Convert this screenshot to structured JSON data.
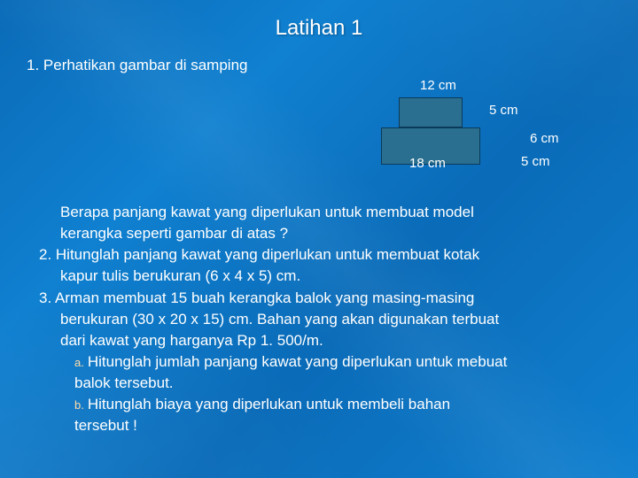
{
  "title": "Latihan 1",
  "q1": "1. Perhatikan gambar di samping",
  "diagram": {
    "label_top": "12 cm",
    "label_right_top": "5 cm",
    "label_right_mid": "6 cm",
    "label_right_bot": "5 cm",
    "label_bottom": "18 cm",
    "rect_fill": "#2a6f8f",
    "rect_border": "#0b3a5a"
  },
  "lines": {
    "q1b_l1": "Berapa panjang kawat yang diperlukan untuk membuat model",
    "q1b_l2": "kerangka seperti gambar di atas ?",
    "q2_l1": "2. Hitunglah panjang kawat yang diperlukan untuk membuat kotak",
    "q2_l2": "kapur tulis berukuran (6 x 4 x 5) cm.",
    "q3_l1": "3. Arman membuat 15 buah kerangka balok yang masing-masing",
    "q3_l2": "berukuran (30 x 20 x 15) cm. Bahan yang akan digunakan terbuat",
    "q3_l3": "dari kawat yang harganya Rp 1. 500/m.",
    "q3a_marker": "a.",
    "q3a_l1": "Hitunglah jumlah panjang kawat yang diperlukan untuk mebuat",
    "q3a_l2": "balok tersebut.",
    "q3b_marker": "b.",
    "q3b_l1": "Hitunglah biaya yang diperlukan untuk membeli bahan",
    "q3b_l2": "tersebut !"
  },
  "colors": {
    "bg_primary": "#0a6bb8",
    "bg_secondary": "#1080d0",
    "text": "#ffffff",
    "marker": "#ffdca8"
  }
}
